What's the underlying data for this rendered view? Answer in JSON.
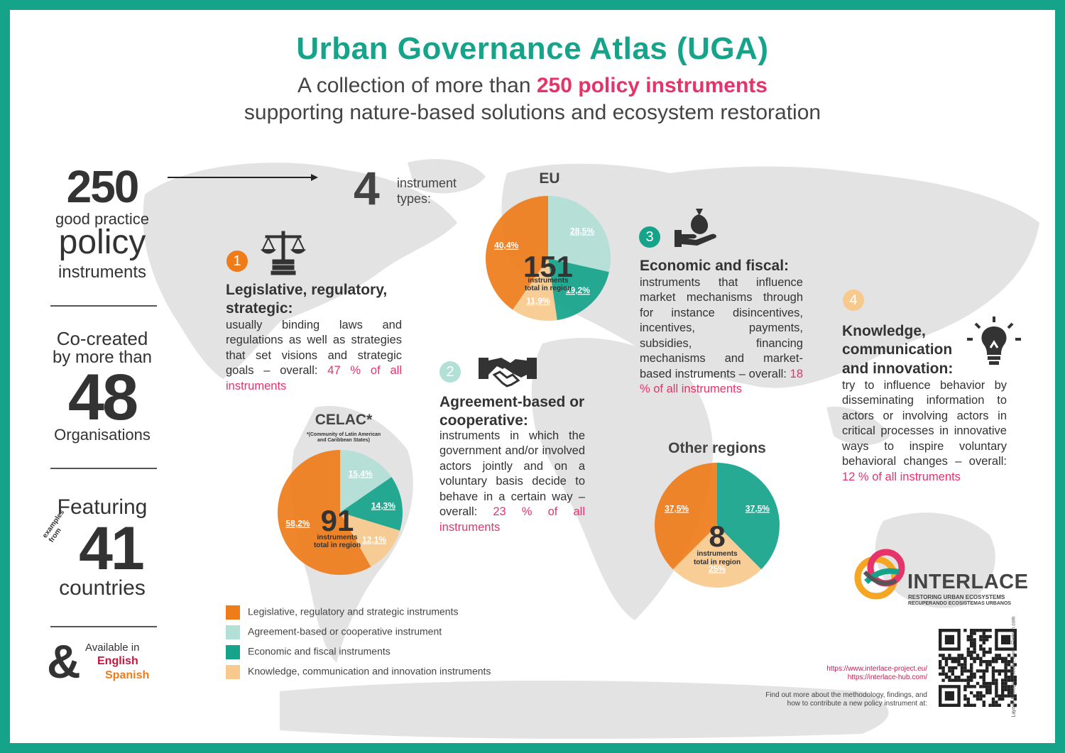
{
  "header": {
    "title": "Urban Governance Atlas (UGA)",
    "subtitle_prefix": "A collection of more than ",
    "subtitle_highlight": "250 policy instruments",
    "subtitle_line2": "supporting nature-based solutions and ecosystem restoration"
  },
  "stats": {
    "instruments_number": "250",
    "instruments_label1": "good practice",
    "instruments_label2": "policy",
    "instruments_label3": "instruments",
    "cocreated_label1": "Co-created",
    "cocreated_label2": "by more than",
    "organisations_number": "48",
    "organisations_label": "Organisations",
    "featuring_label": "Featuring",
    "examples_from": "examples from",
    "countries_number": "41",
    "countries_label": "countries",
    "ampersand": "&",
    "available_label": "Available in",
    "lang1": "English",
    "lang2": "Spanish"
  },
  "types_intro": {
    "number": "4",
    "label": "instrument types:"
  },
  "categories": [
    {
      "num": "1",
      "head": "Legislative, regulatory, strategic:",
      "body": "usually binding laws and regulations as well as strategies that set visions and strategic goals – overall: ",
      "pct": "47 % of all instruments"
    },
    {
      "num": "2",
      "head": "Agreement-based or cooperative:",
      "body": "instruments in which the government and/or involved actors jointly and on a voluntary basis decide to behave in a certain way – overall: ",
      "pct": "23 % of all instruments"
    },
    {
      "num": "3",
      "head": "Economic and fiscal:",
      "body": "instruments that influence market mechanisms through for instance disincentives, incentives, payments, subsidies, financing mechanisms and market-based instruments – overall: ",
      "pct": "18 % of all instruments"
    },
    {
      "num": "4",
      "head": "Knowledge, communication and innovation:",
      "body": "try to influence behavior by disseminating information to actors or involving actors in critical processes in innovative ways to inspire voluntary behavioral changes – overall: ",
      "pct": "12 % of all instruments"
    }
  ],
  "colors": {
    "legislative": "#ef7c1a",
    "agreement": "#b2e0d6",
    "economic": "#15a38a",
    "knowledge": "#f8c98d",
    "accent_pink": "#e6336a",
    "brand_teal": "#15a38a"
  },
  "regions": {
    "eu": {
      "title": "EU",
      "total": "151",
      "total_label1": "instruments",
      "total_label2": "total in region"
    },
    "celac": {
      "title": "CELAC*",
      "note1": "*(Community of Latin American",
      "note2": "and Caribbean States)",
      "total": "91",
      "total_label1": "instruments",
      "total_label2": "total in region"
    },
    "other": {
      "title": "Other regions",
      "total": "8",
      "total_label1": "instruments",
      "total_label2": "total in region"
    }
  },
  "chart_data": [
    {
      "type": "pie",
      "title": "EU",
      "categories": [
        "Legislative, regulatory and strategic instruments",
        "Agreement-based or cooperative instrument",
        "Economic and fiscal instruments",
        "Knowledge, communication and innovation instruments"
      ],
      "values": [
        40.4,
        28.5,
        19.2,
        11.9
      ],
      "labels": [
        "40,4%",
        "28,5%",
        "19,2%",
        "11,9%"
      ]
    },
    {
      "type": "pie",
      "title": "CELAC*",
      "categories": [
        "Legislative, regulatory and strategic instruments",
        "Agreement-based or cooperative instrument",
        "Economic and fiscal instruments",
        "Knowledge, communication and innovation instruments"
      ],
      "values": [
        58.2,
        15.4,
        14.3,
        12.1
      ],
      "labels": [
        "58,2%",
        "15,4%",
        "14,3%",
        "12,1%"
      ]
    },
    {
      "type": "pie",
      "title": "Other regions",
      "categories": [
        "Legislative, regulatory and strategic instruments",
        "Agreement-based or cooperative instrument",
        "Economic and fiscal instruments",
        "Knowledge, communication and innovation instruments"
      ],
      "values": [
        37.5,
        0,
        37.5,
        25
      ],
      "labels": [
        "37,5%",
        "",
        "37,5%",
        "25%"
      ]
    }
  ],
  "legend": [
    "Legislative, regulatory and strategic instruments",
    "Agreement-based or cooperative instrument",
    "Economic and fiscal instruments",
    "Knowledge, communication and innovation instruments"
  ],
  "branding": {
    "logo_name": "INTERLACE",
    "logo_tag1": "RESTORING URBAN ECOSYSTEMS",
    "logo_tag2": "RECUPERANDO ECOSISTEMAS URBANOS",
    "url1": "https://www.interlace-project.eu/",
    "url2": "https://interlace-hub.com/",
    "findout1": "Find out more about the methodology, findings, and",
    "findout2": "how to contribute a new policy instrument at:",
    "credit": "Layout: Ecologic Institute, Icons: Flaticon.com"
  }
}
